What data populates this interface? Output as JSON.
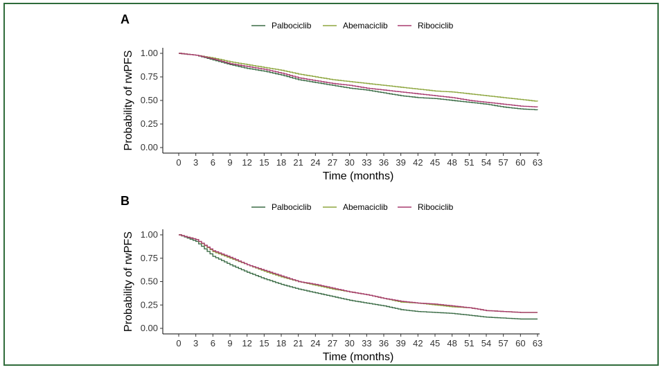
{
  "colors": {
    "Palbociclib": "#3a6b45",
    "Abemaciclib": "#8da63f",
    "Ribociclib": "#a83a6f",
    "frame": "#2e6b3a"
  },
  "chart_data": [
    {
      "panel_label": "A",
      "type": "line",
      "step": true,
      "xlabel": "Time (months)",
      "ylabel": "Probability of rwPFS",
      "xlim": [
        0,
        63
      ],
      "ylim": [
        0,
        1
      ],
      "xticks": [
        "0",
        "3",
        "6",
        "9",
        "12",
        "15",
        "18",
        "21",
        "24",
        "27",
        "30",
        "33",
        "36",
        "39",
        "42",
        "45",
        "48",
        "51",
        "54",
        "57",
        "60",
        "63"
      ],
      "yticks": [
        "0.00",
        "0.25",
        "0.50",
        "0.75",
        "1.00"
      ],
      "legend_position": "top",
      "grid": false,
      "x": [
        0,
        3,
        6,
        9,
        12,
        15,
        18,
        21,
        24,
        27,
        30,
        33,
        36,
        39,
        42,
        45,
        48,
        51,
        54,
        57,
        60,
        63
      ],
      "series": [
        {
          "name": "Palbociclib",
          "values": [
            1.0,
            0.98,
            0.93,
            0.88,
            0.84,
            0.81,
            0.77,
            0.72,
            0.69,
            0.66,
            0.63,
            0.61,
            0.58,
            0.55,
            0.53,
            0.52,
            0.5,
            0.48,
            0.46,
            0.43,
            0.41,
            0.4
          ]
        },
        {
          "name": "Abemaciclib",
          "values": [
            1.0,
            0.98,
            0.95,
            0.91,
            0.88,
            0.85,
            0.82,
            0.78,
            0.75,
            0.72,
            0.7,
            0.68,
            0.66,
            0.64,
            0.62,
            0.6,
            0.59,
            0.57,
            0.55,
            0.53,
            0.51,
            0.49
          ]
        },
        {
          "name": "Ribociclib",
          "values": [
            1.0,
            0.98,
            0.94,
            0.89,
            0.86,
            0.83,
            0.79,
            0.74,
            0.71,
            0.68,
            0.66,
            0.63,
            0.61,
            0.59,
            0.57,
            0.55,
            0.53,
            0.5,
            0.48,
            0.46,
            0.44,
            0.43
          ]
        }
      ]
    },
    {
      "panel_label": "B",
      "type": "line",
      "step": true,
      "xlabel": "Time (months)",
      "ylabel": "Probability of rwPFS",
      "xlim": [
        0,
        63
      ],
      "ylim": [
        0,
        1
      ],
      "xticks": [
        "0",
        "3",
        "6",
        "9",
        "12",
        "15",
        "18",
        "21",
        "24",
        "27",
        "30",
        "33",
        "36",
        "39",
        "42",
        "45",
        "48",
        "51",
        "54",
        "57",
        "60",
        "63"
      ],
      "yticks": [
        "0.00",
        "0.25",
        "0.50",
        "0.75",
        "1.00"
      ],
      "legend_position": "top",
      "grid": false,
      "x": [
        0,
        3,
        6,
        9,
        12,
        15,
        18,
        21,
        24,
        27,
        30,
        33,
        36,
        39,
        42,
        45,
        48,
        51,
        54,
        57,
        60,
        63
      ],
      "series": [
        {
          "name": "Palbociclib",
          "values": [
            1.0,
            0.93,
            0.77,
            0.68,
            0.6,
            0.53,
            0.47,
            0.42,
            0.38,
            0.34,
            0.3,
            0.27,
            0.24,
            0.2,
            0.18,
            0.17,
            0.16,
            0.14,
            0.12,
            0.11,
            0.1,
            0.1
          ]
        },
        {
          "name": "Abemaciclib",
          "values": [
            1.0,
            0.95,
            0.82,
            0.75,
            0.68,
            0.61,
            0.55,
            0.5,
            0.46,
            0.42,
            0.39,
            0.36,
            0.32,
            0.28,
            0.27,
            0.25,
            0.23,
            0.22,
            0.19,
            0.18,
            0.17,
            0.17
          ]
        },
        {
          "name": "Ribociclib",
          "values": [
            1.0,
            0.95,
            0.83,
            0.76,
            0.68,
            0.62,
            0.56,
            0.5,
            0.47,
            0.43,
            0.39,
            0.36,
            0.32,
            0.29,
            0.27,
            0.26,
            0.24,
            0.22,
            0.19,
            0.18,
            0.17,
            0.17
          ]
        }
      ]
    }
  ]
}
